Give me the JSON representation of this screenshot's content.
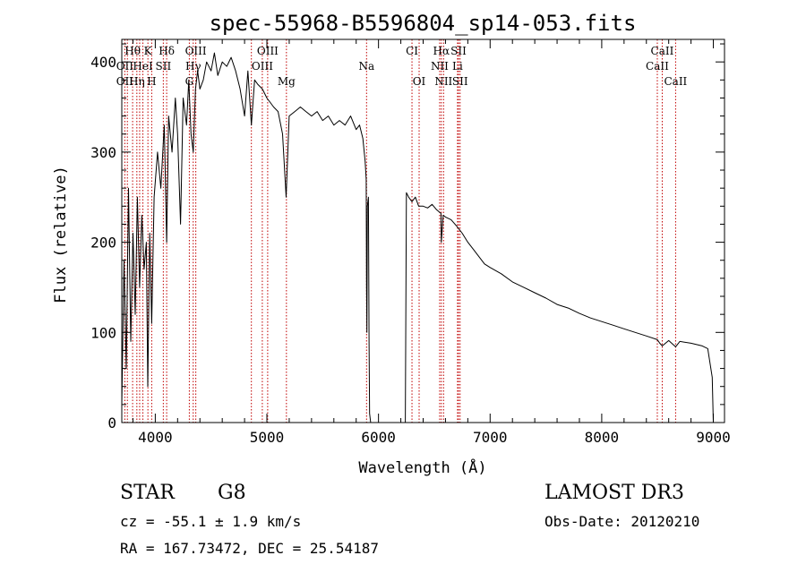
{
  "chart_data": {
    "type": "line",
    "title": "spec-55968-B5596804_sp14-053.fits",
    "xlabel": "Wavelength (Å)",
    "ylabel": "Flux (relative)",
    "xlim": [
      3700,
      9100
    ],
    "ylim": [
      0,
      425
    ],
    "x_ticks": [
      4000,
      5000,
      6000,
      7000,
      8000,
      9000
    ],
    "y_ticks": [
      0,
      100,
      200,
      300,
      400
    ],
    "series": [
      {
        "name": "flux",
        "color": "#000000",
        "x": [
          3700,
          3720,
          3740,
          3760,
          3780,
          3800,
          3820,
          3840,
          3860,
          3880,
          3900,
          3920,
          3933,
          3950,
          3968,
          3990,
          4020,
          4050,
          4080,
          4102,
          4120,
          4150,
          4180,
          4200,
          4226,
          4250,
          4280,
          4300,
          4320,
          4340,
          4360,
          4380,
          4400,
          4430,
          4460,
          4500,
          4530,
          4560,
          4600,
          4640,
          4680,
          4720,
          4760,
          4800,
          4830,
          4861,
          4890,
          4920,
          4960,
          5000,
          5030,
          5060,
          5100,
          5140,
          5172,
          5200,
          5250,
          5300,
          5350,
          5400,
          5450,
          5500,
          5550,
          5600,
          5650,
          5700,
          5750,
          5800,
          5830,
          5860,
          5880,
          5890,
          5893,
          5896,
          5900,
          5910,
          5915,
          5920,
          5930,
          5950,
          6000,
          6050,
          6100,
          6150,
          6200,
          6240,
          6250,
          6270,
          6300,
          6330,
          6360,
          6400,
          6440,
          6480,
          6520,
          6560,
          6563,
          6580,
          6600,
          6650,
          6700,
          6750,
          6800,
          6850,
          6900,
          6950,
          7000,
          7100,
          7200,
          7300,
          7400,
          7500,
          7600,
          7700,
          7800,
          7900,
          8000,
          8100,
          8200,
          8300,
          8400,
          8498,
          8520,
          8542,
          8600,
          8662,
          8700,
          8800,
          8900,
          8950,
          8990,
          9000
        ],
        "values": [
          20,
          180,
          60,
          260,
          90,
          210,
          120,
          250,
          150,
          230,
          170,
          200,
          40,
          210,
          110,
          250,
          300,
          260,
          330,
          200,
          340,
          300,
          360,
          320,
          220,
          360,
          330,
          380,
          320,
          300,
          370,
          390,
          370,
          380,
          400,
          390,
          410,
          385,
          400,
          395,
          405,
          390,
          370,
          340,
          390,
          330,
          380,
          375,
          370,
          360,
          355,
          350,
          345,
          320,
          250,
          340,
          345,
          350,
          345,
          340,
          345,
          335,
          340,
          330,
          335,
          330,
          340,
          325,
          330,
          315,
          290,
          270,
          150,
          100,
          240,
          250,
          90,
          10,
          0,
          0,
          0,
          0,
          0,
          0,
          0,
          0,
          255,
          250,
          245,
          250,
          240,
          240,
          238,
          242,
          236,
          232,
          200,
          230,
          228,
          225,
          218,
          210,
          200,
          192,
          184,
          176,
          172,
          165,
          156,
          150,
          144,
          138,
          131,
          127,
          121,
          116,
          112,
          108,
          104,
          100,
          96,
          92,
          88,
          85,
          91,
          84,
          90,
          88,
          85,
          82,
          50,
          0
        ]
      }
    ],
    "spectral_lines": [
      {
        "label": "Hθ",
        "x": 3797,
        "row": 1
      },
      {
        "label": "K",
        "x": 3934,
        "row": 1
      },
      {
        "label": "Hδ",
        "x": 4102,
        "row": 1
      },
      {
        "label": "OIII",
        "x": 4363,
        "row": 1
      },
      {
        "label": "OIII",
        "x": 5007,
        "row": 1
      },
      {
        "label": "CI",
        "x": 6300,
        "row": 1
      },
      {
        "label": "Hα",
        "x": 6563,
        "row": 1
      },
      {
        "label": "SII",
        "x": 6717,
        "row": 1
      },
      {
        "label": "CaII",
        "x": 8542,
        "row": 1
      },
      {
        "label": "OII",
        "x": 3727,
        "row": 2
      },
      {
        "label": "HeI",
        "x": 3889,
        "row": 2
      },
      {
        "label": "SII",
        "x": 4072,
        "row": 2
      },
      {
        "label": "Hγ",
        "x": 4340,
        "row": 2
      },
      {
        "label": "OIII",
        "x": 4959,
        "row": 2
      },
      {
        "label": "Na",
        "x": 5893,
        "row": 2
      },
      {
        "label": "NII",
        "x": 6548,
        "row": 2
      },
      {
        "label": "Li",
        "x": 6708,
        "row": 2
      },
      {
        "label": "CaII",
        "x": 8498,
        "row": 2
      },
      {
        "label": "OII",
        "x": 3727,
        "row": 3
      },
      {
        "label": "Hη",
        "x": 3835,
        "row": 3
      },
      {
        "label": "H",
        "x": 3968,
        "row": 3
      },
      {
        "label": "G",
        "x": 4305,
        "row": 3
      },
      {
        "label": "Mg",
        "x": 5175,
        "row": 3
      },
      {
        "label": "OI",
        "x": 6364,
        "row": 3
      },
      {
        "label": "NII",
        "x": 6583,
        "row": 3
      },
      {
        "label": "SII",
        "x": 6731,
        "row": 3
      },
      {
        "label": "CaII",
        "x": 8662,
        "row": 3
      }
    ],
    "extra_marker_lines": [
      3750,
      3860,
      4861
    ],
    "marker_color": "#c00000",
    "grid": false
  },
  "info": {
    "object_class": "STAR",
    "subclass": "G8",
    "survey": "LAMOST DR3",
    "redshift": "cz = -55.1 ± 1.9 km/s",
    "obs_date": "Obs-Date: 20120210",
    "coords": "RA = 167.73472, DEC =  25.54187"
  }
}
